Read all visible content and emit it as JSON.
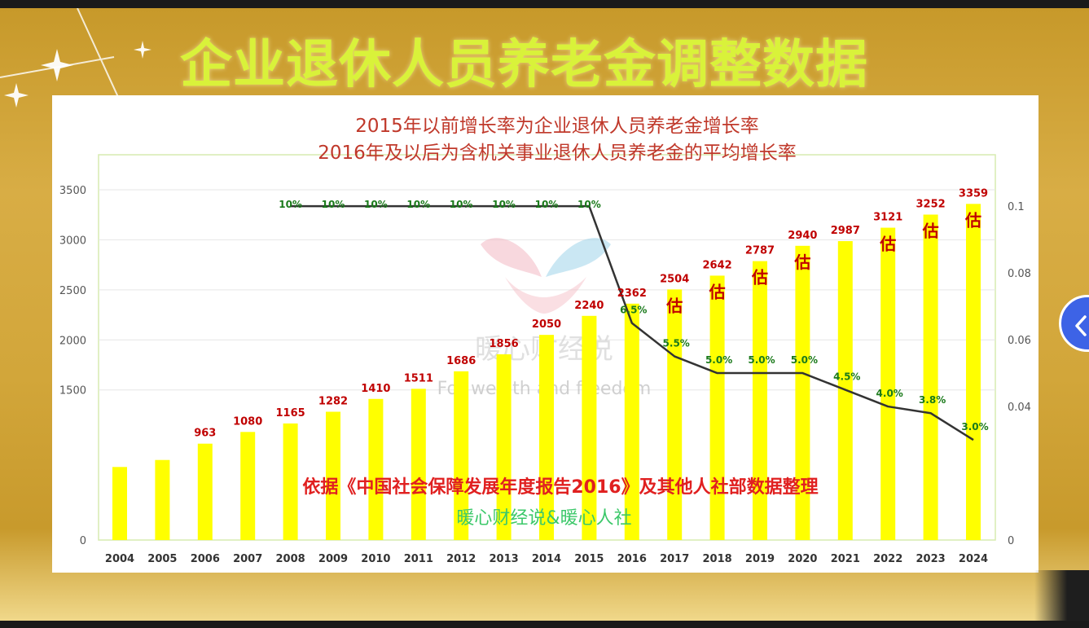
{
  "page": {
    "title": "企业退休人员养老金调整数据",
    "nav_icon": "chevron-left-icon"
  },
  "chart_data": {
    "type": "bar",
    "subtitle_lines": [
      "2015年以前增长率为企业退休人员养老金增长率",
      "2016年及以后为含机关事业退休人员养老金的平均增长率"
    ],
    "categories": [
      "2004",
      "2005",
      "2006",
      "2007",
      "2008",
      "2009",
      "2010",
      "2011",
      "2012",
      "2013",
      "2014",
      "2015",
      "2016",
      "2017",
      "2018",
      "2019",
      "2020",
      "2021",
      "2022",
      "2023",
      "2024"
    ],
    "series": [
      {
        "kind": "bar",
        "values": [
          null,
          null,
          963,
          1080,
          1165,
          1282,
          1410,
          1511,
          1686,
          1856,
          2050,
          2240,
          2362,
          2504,
          2642,
          2787,
          2940,
          2987,
          3121,
          3252,
          3359
        ],
        "estimated_values": [
          730,
          800,
          963,
          1080,
          1165,
          1282,
          1410,
          1511,
          1686,
          1856,
          2050,
          2240,
          2362,
          2504,
          2642,
          2787,
          2940,
          2987,
          3121,
          3252,
          3359
        ],
        "estimate_marks": [
          null,
          null,
          null,
          null,
          null,
          null,
          null,
          null,
          null,
          null,
          null,
          null,
          null,
          "估",
          "估",
          "估",
          "估",
          null,
          "估",
          "估",
          "估"
        ],
        "color": "#ffff00",
        "label_color": "#c00000"
      },
      {
        "kind": "line",
        "axis": "right",
        "values": [
          null,
          null,
          null,
          null,
          0.1,
          0.1,
          0.1,
          0.1,
          0.1,
          0.1,
          0.1,
          0.1,
          0.065,
          0.055,
          0.05,
          0.05,
          0.05,
          0.045,
          0.04,
          0.038,
          0.03
        ],
        "labels": [
          null,
          null,
          null,
          null,
          "10%",
          "10%",
          "10%",
          "10%",
          "10%",
          "10%",
          "10%",
          "10%",
          "6.5%",
          "5.5%",
          "5.0%",
          "5.0%",
          "5.0%",
          "4.5%",
          "4.0%",
          "3.8%",
          "3.0%"
        ],
        "color": "#333333",
        "label_color": "#1a7a1a"
      }
    ],
    "y_left": {
      "min": 0,
      "max": 3850,
      "ticks": [
        0,
        1500,
        2000,
        2500,
        3000,
        3500
      ]
    },
    "y_right": {
      "min": 0,
      "max": 0.1154,
      "ticks": [
        0,
        0.04,
        0.06,
        0.08,
        0.1
      ]
    },
    "grid": true,
    "source_note": "依据《中国社会保障发展年度报告2016》及其他人社部数据整理",
    "credit": "暖心财经说&暖心人社",
    "watermark_cn": "暖心财经说",
    "watermark_en": "For wealth and freedom",
    "colors": {
      "bar": "#ffff00",
      "value_label": "#c00000",
      "rate_label": "#1a7a1a",
      "line": "#333333",
      "title": "#d9f23a",
      "subtitle": "#c0392b",
      "grid": "#e6e6e6",
      "plot_border": "#d7ebb0"
    }
  }
}
